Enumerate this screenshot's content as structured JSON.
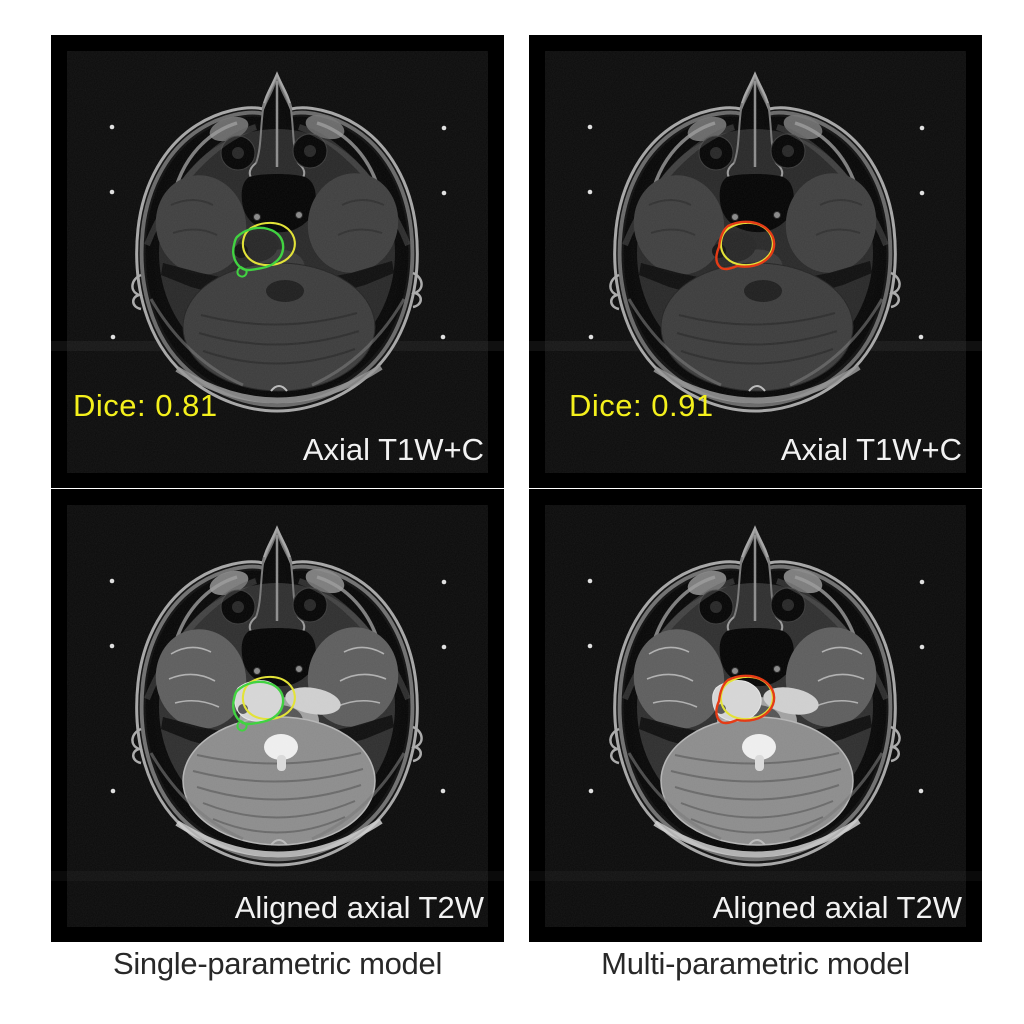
{
  "figure": {
    "styles": {
      "page_bg": "#ffffff",
      "panel_bg": "#000000",
      "dice_color": "#f4f01c",
      "label_color": "#f2f2f2",
      "caption_color": "#282828"
    },
    "columns": [
      {
        "caption": "Single-parametric model",
        "contours": {
          "ground_truth_color": "#e3e332",
          "prediction_color": "#3bd23b",
          "fit": "loose"
        },
        "panels": [
          {
            "modality": "t1",
            "label": "Axial T1W+C",
            "dice_label": "Dice: 0.81",
            "dice": 0.81
          },
          {
            "modality": "t2",
            "label": "Aligned axial T2W"
          }
        ]
      },
      {
        "caption": "Multi-parametric model",
        "contours": {
          "ground_truth_color": "#e3e332",
          "prediction_color": "#e5350e",
          "fit": "tight"
        },
        "panels": [
          {
            "modality": "t1",
            "label": "Axial T1W+C",
            "dice_label": "Dice: 0.91",
            "dice": 0.91
          },
          {
            "modality": "t2",
            "label": "Aligned axial T2W"
          }
        ]
      }
    ]
  }
}
